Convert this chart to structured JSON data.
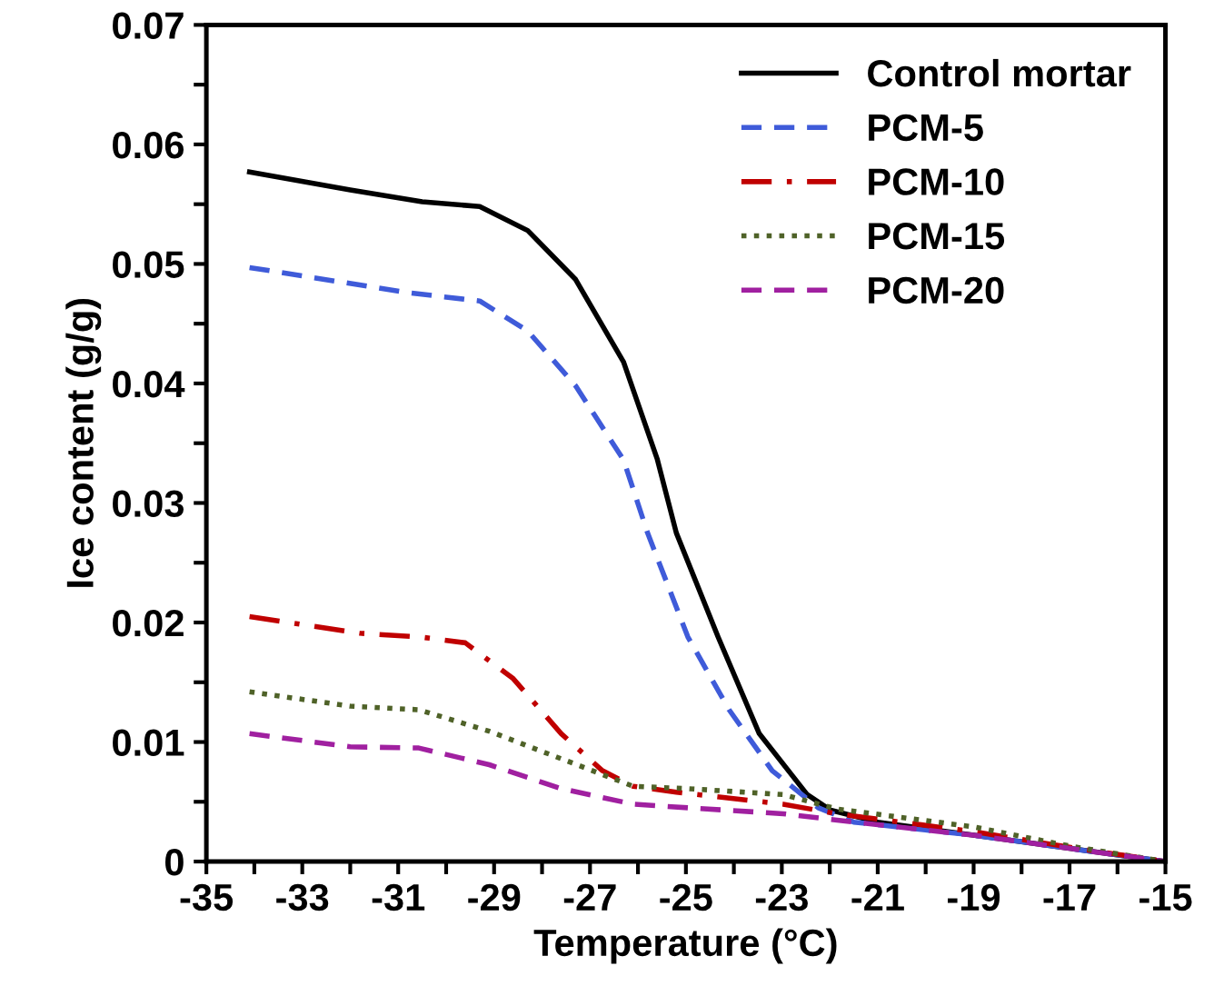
{
  "chart_data": {
    "type": "line",
    "xlabel": "Temperature (°C)",
    "ylabel": "Ice content (g/g)",
    "xlim": [
      -35,
      -15
    ],
    "ylim": [
      0,
      0.07
    ],
    "xticks": [
      -35,
      {
        "value": -34,
        "label": null
      },
      -33,
      {
        "value": -32,
        "label": null
      },
      -31,
      {
        "value": -30,
        "label": null
      },
      -29,
      {
        "value": -28,
        "label": null
      },
      -27,
      {
        "value": -26,
        "label": null
      },
      -25,
      {
        "value": -24,
        "label": null
      },
      -23,
      {
        "value": -22,
        "label": null
      },
      -21,
      {
        "value": -20,
        "label": null
      },
      -19,
      {
        "value": -18,
        "label": null
      },
      -17,
      {
        "value": -16,
        "label": null
      },
      -15
    ],
    "yticks": [
      0,
      {
        "value": 0.005,
        "label": null
      },
      0.01,
      {
        "value": 0.015,
        "label": null
      },
      0.02,
      {
        "value": 0.025,
        "label": null
      },
      0.03,
      {
        "value": 0.035,
        "label": null
      },
      0.04,
      {
        "value": 0.045,
        "label": null
      },
      0.05,
      {
        "value": 0.055,
        "label": null
      },
      0.06,
      {
        "value": 0.065,
        "label": null
      },
      0.07
    ],
    "grid": false,
    "legend": "top right",
    "marker": "none",
    "series": [
      {
        "name": "Control mortar",
        "color": "#000000",
        "line_style": "solid",
        "x": [
          -34.1,
          -32,
          -30.5,
          -29.3,
          -28.3,
          -27.3,
          -26.3,
          -25.6,
          -25.2,
          -24.33,
          -23.47,
          -22.47,
          -21.98,
          -21,
          -19,
          -17,
          -15
        ],
        "values": [
          0.0577,
          0.0562,
          0.0552,
          0.0548,
          0.0528,
          0.0487,
          0.0418,
          0.0337,
          0.0275,
          0.0188,
          0.0107,
          0.0056,
          0.0043,
          0.0033,
          0.0022,
          0.0011,
          0
        ]
      },
      {
        "name": "PCM-5",
        "color": "#3f5bd9",
        "line_style": "dashed",
        "x": [
          -34.1,
          -30.8,
          -29.3,
          -28.3,
          -27.3,
          -26.3,
          -25.8,
          -24.96,
          -24.1,
          -23.2,
          -22.24,
          -21.5,
          -19,
          -17,
          -15
        ],
        "values": [
          0.0497,
          0.0476,
          0.0469,
          0.0444,
          0.0398,
          0.0336,
          0.0275,
          0.0188,
          0.0127,
          0.0076,
          0.0045,
          0.0033,
          0.0022,
          0.0011,
          0
        ]
      },
      {
        "name": "PCM-10",
        "color": "#c00000",
        "line_style": "dashdot",
        "x": [
          -34.1,
          -31.8,
          -30.57,
          -29.6,
          -28.6,
          -27.6,
          -26.74,
          -26.1,
          -25.2,
          -22.97,
          -21.85,
          -19,
          -17,
          -15
        ],
        "values": [
          0.0205,
          0.0191,
          0.0188,
          0.0183,
          0.0153,
          0.0107,
          0.0076,
          0.0063,
          0.0058,
          0.0048,
          0.004,
          0.0025,
          0.0012,
          0
        ]
      },
      {
        "name": "PCM-15",
        "color": "#4f6228",
        "line_style": "dotted",
        "x": [
          -34.1,
          -32,
          -30.57,
          -29.1,
          -27.6,
          -26.1,
          -24.96,
          -22.97,
          -21.85,
          -19,
          -17,
          -15
        ],
        "values": [
          0.0142,
          0.013,
          0.0127,
          0.0109,
          0.0086,
          0.0063,
          0.0061,
          0.0056,
          0.0044,
          0.0029,
          0.0013,
          0
        ]
      },
      {
        "name": "PCM-20",
        "color": "#a020a0",
        "line_style": "dashed",
        "x": [
          -34.1,
          -32,
          -30.57,
          -29.1,
          -27.6,
          -26.1,
          -24.96,
          -22.97,
          -21.5,
          -19,
          -17,
          -15
        ],
        "values": [
          0.0107,
          0.0096,
          0.0095,
          0.0081,
          0.0061,
          0.0048,
          0.0045,
          0.004,
          0.0033,
          0.0022,
          0.0011,
          0
        ]
      }
    ]
  }
}
